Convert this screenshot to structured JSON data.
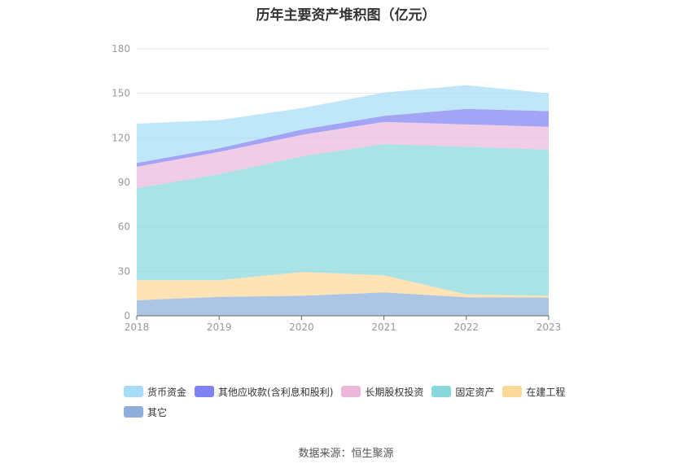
{
  "chart_data": {
    "type": "area",
    "stacked": true,
    "title": "历年主要资产堆积图（亿元）",
    "categories": [
      "2018",
      "2019",
      "2020",
      "2021",
      "2022",
      "2023"
    ],
    "ylim": [
      0,
      180
    ],
    "yticks": [
      "0",
      "30",
      "60",
      "90",
      "120",
      "150",
      "180"
    ],
    "grid": true,
    "legend_position": "bottom",
    "series": [
      {
        "name": "其它",
        "color": "#8eaedb",
        "values": [
          10.5,
          12.8,
          13.5,
          15.8,
          12.5,
          12.3
        ]
      },
      {
        "name": "在建工程",
        "color": "#fcd89a",
        "values": [
          13.5,
          11.2,
          16.0,
          11.5,
          2.0,
          1.2
        ]
      },
      {
        "name": "固定资产",
        "color": "#88d8db",
        "values": [
          62.0,
          71.5,
          78.0,
          88.5,
          99.5,
          98.5
        ]
      },
      {
        "name": "长期股权投资",
        "color": "#ebb8dc",
        "values": [
          14.5,
          15.0,
          14.5,
          15.0,
          15.0,
          15.5
        ]
      },
      {
        "name": "其他应收款(含利息和股利)",
        "color": "#7e82f2",
        "values": [
          2.5,
          2.5,
          3.5,
          4.0,
          10.5,
          10.5
        ]
      },
      {
        "name": "货币资金",
        "color": "#a7dcf8",
        "values": [
          26.5,
          19.0,
          14.5,
          15.7,
          16.0,
          12.0
        ]
      }
    ]
  },
  "legend_order": [
    5,
    4,
    3,
    2,
    1,
    0
  ],
  "source": "数据来源：恒生聚源"
}
